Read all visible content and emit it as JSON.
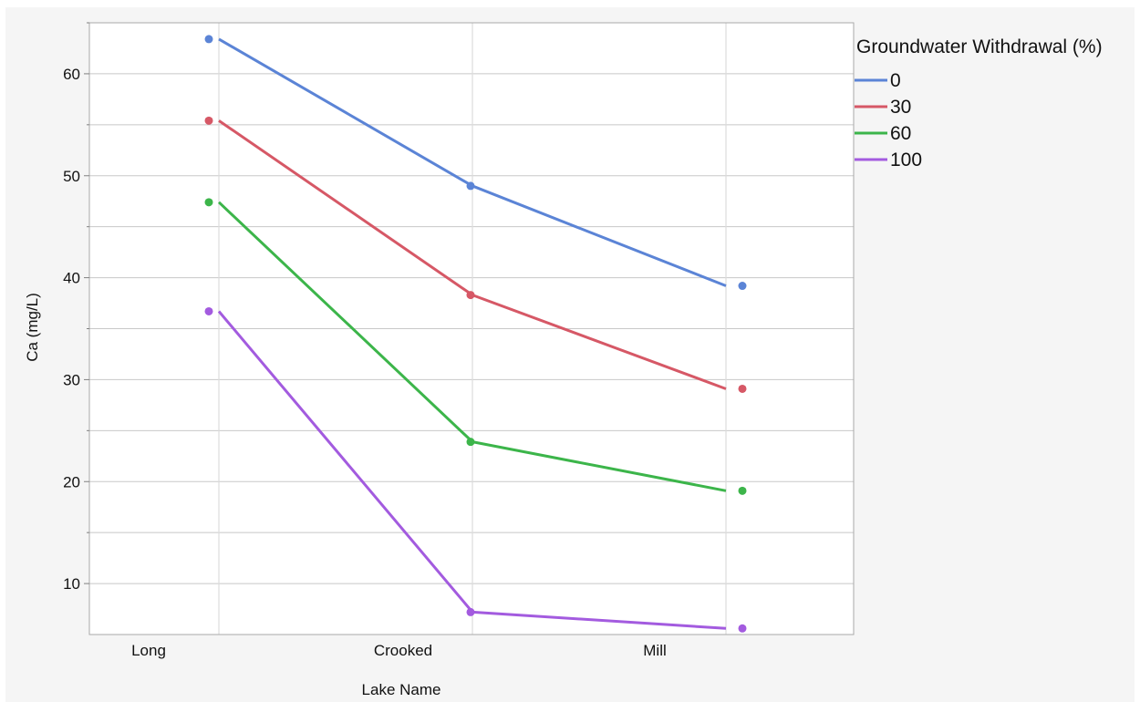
{
  "chart_data": {
    "type": "line",
    "xlabel": "Lake Name",
    "ylabel": "Ca (mg/L)",
    "categories": [
      "Long",
      "Crooked",
      "Mill"
    ],
    "ylim": [
      5,
      65
    ],
    "yticks": [
      10,
      20,
      30,
      40,
      50,
      60
    ],
    "grid": true,
    "legend": {
      "title": "Groundwater Withdrawal (%)",
      "placement": "top-right"
    },
    "series": [
      {
        "name": "0",
        "color": "#5b84d6",
        "values": [
          63.4,
          49.0,
          39.2
        ]
      },
      {
        "name": "30",
        "color": "#d65866",
        "values": [
          55.4,
          38.3,
          29.1
        ]
      },
      {
        "name": "60",
        "color": "#3cb54a",
        "values": [
          47.4,
          23.9,
          19.1
        ]
      },
      {
        "name": "100",
        "color": "#a35bdf",
        "values": [
          36.7,
          7.2,
          5.6
        ]
      }
    ]
  }
}
